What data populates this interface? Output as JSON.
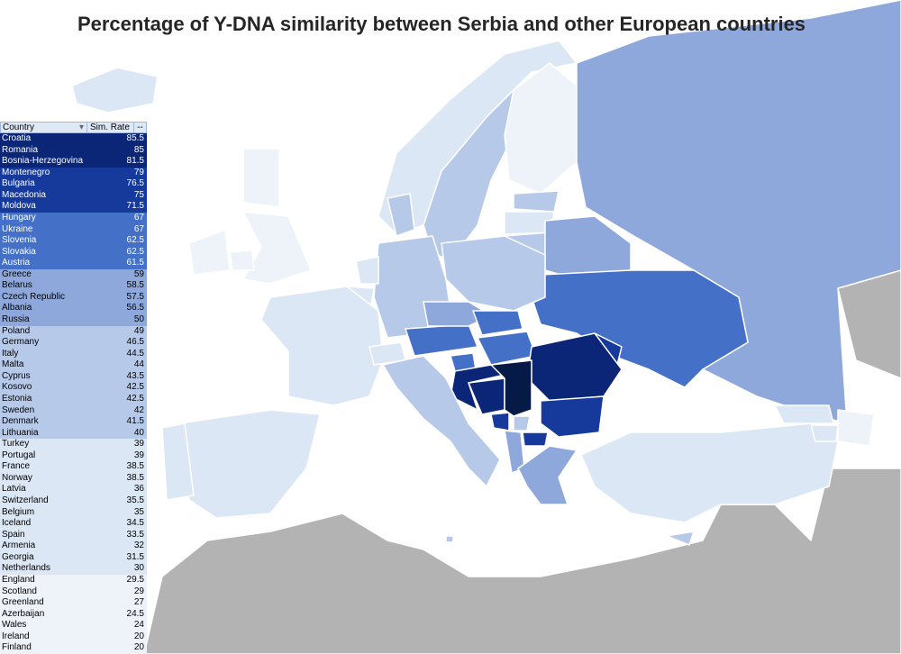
{
  "title": "Percentage of Y-DNA similarity between Serbia and other European countries",
  "table": {
    "headers": {
      "country": "Country",
      "rate": "Sim. Rate",
      "filter_icon": "▾",
      "extra": "--"
    },
    "rows": [
      [
        "Croatia",
        "85.5",
        0
      ],
      [
        "Romania",
        "85",
        0
      ],
      [
        "Bosnia-Herzegovina",
        "81.5",
        0
      ],
      [
        "Montenegro",
        "79",
        1
      ],
      [
        "Bulgaria",
        "76.5",
        1
      ],
      [
        "Macedonia",
        "75",
        1
      ],
      [
        "Moldova",
        "71.5",
        1
      ],
      [
        "Hungary",
        "67",
        2
      ],
      [
        "Ukraine",
        "67",
        2
      ],
      [
        "Slovenia",
        "62.5",
        2
      ],
      [
        "Slovakia",
        "62.5",
        2
      ],
      [
        "Austria",
        "61.5",
        2
      ],
      [
        "Greece",
        "59",
        3
      ],
      [
        "Belarus",
        "58.5",
        3
      ],
      [
        "Czech Republic",
        "57.5",
        3
      ],
      [
        "Albania",
        "56.5",
        3
      ],
      [
        "Russia",
        "50",
        3
      ],
      [
        "Poland",
        "49",
        4
      ],
      [
        "Germany",
        "46.5",
        4
      ],
      [
        "Italy",
        "44.5",
        4
      ],
      [
        "Malta",
        "44",
        4
      ],
      [
        "Cyprus",
        "43.5",
        4
      ],
      [
        "Kosovo",
        "42.5",
        4
      ],
      [
        "Estonia",
        "42.5",
        4
      ],
      [
        "Sweden",
        "42",
        4
      ],
      [
        "Denmark",
        "41.5",
        4
      ],
      [
        "Lithuania",
        "40",
        4
      ],
      [
        "Turkey",
        "39",
        5
      ],
      [
        "Portugal",
        "39",
        5
      ],
      [
        "France",
        "38.5",
        5
      ],
      [
        "Norway",
        "38.5",
        5
      ],
      [
        "Latvia",
        "36",
        5
      ],
      [
        "Switzerland",
        "35.5",
        5
      ],
      [
        "Belgium",
        "35",
        5
      ],
      [
        "Iceland",
        "34.5",
        5
      ],
      [
        "Spain",
        "33.5",
        5
      ],
      [
        "Armenia",
        "32",
        5
      ],
      [
        "Georgia",
        "31.5",
        5
      ],
      [
        "Netherlands",
        "30",
        5
      ],
      [
        "England",
        "29.5",
        6
      ],
      [
        "Scotland",
        "29",
        6
      ],
      [
        "Greenland",
        "27",
        6
      ],
      [
        "Azerbaijan",
        "24.5",
        6
      ],
      [
        "Wales",
        "24",
        6
      ],
      [
        "Ireland",
        "20",
        6
      ],
      [
        "Finland",
        "20",
        6
      ]
    ]
  },
  "tiers": [
    {
      "bg": "#0c2677",
      "fg": "#ffffff"
    },
    {
      "bg": "#163a9c",
      "fg": "#ffffff"
    },
    {
      "bg": "#4470c8",
      "fg": "#ffffff"
    },
    {
      "bg": "#8ea8dc",
      "fg": "#000000"
    },
    {
      "bg": "#b7c9e9",
      "fg": "#000000"
    },
    {
      "bg": "#dce7f5",
      "fg": "#000000"
    },
    {
      "bg": "#eef3fa",
      "fg": "#000000"
    }
  ],
  "serbia_color": "#061a48",
  "outside_color": "#b3b3b3"
}
